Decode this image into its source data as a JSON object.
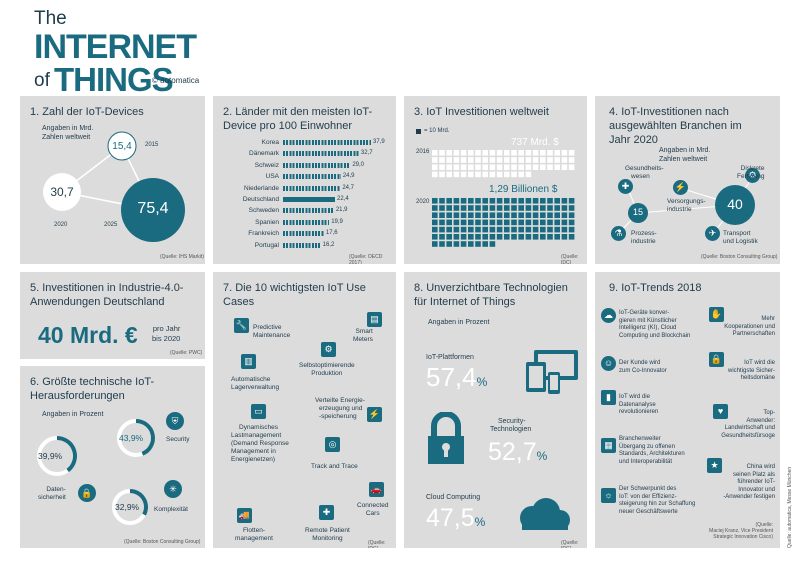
{
  "header": {
    "line1": "The",
    "line2": "INTERNET",
    "line3a": "of",
    "line3b": "THINGS",
    "copyright": "© automatica"
  },
  "p1": {
    "title": "1. Zahl der IoT-Devices",
    "subtitle": "Angaben in Mrd.",
    "subtitle2": "Zahlen weltweit",
    "v2015": "15,4",
    "l2015": "2015",
    "v2020": "30,7",
    "l2020": "2020",
    "v2025": "75,4",
    "l2025": "2025",
    "source": "(Quelle: IHS Markit)"
  },
  "p2": {
    "title": "2. Länder mit den meisten IoT-",
    "title2": "Device pro 100 Einwohner",
    "rows": [
      {
        "country": "Korea",
        "value": "37,9"
      },
      {
        "country": "Dänemark",
        "value": "32,7"
      },
      {
        "country": "Schweiz",
        "value": "29,0"
      },
      {
        "country": "USA",
        "value": "24,9"
      },
      {
        "country": "Niederlande",
        "value": "24,7"
      },
      {
        "country": "Deutschland",
        "value": "22,4"
      },
      {
        "country": "Schweden",
        "value": "21,9"
      },
      {
        "country": "Spanien",
        "value": "19,9"
      },
      {
        "country": "Frankreich",
        "value": "17,6"
      },
      {
        "country": "Portugal",
        "value": "16,2"
      }
    ],
    "source": "(Quelle: OECD 2017)"
  },
  "p3": {
    "title": "3. IoT Investitionen weltweit",
    "legend": "= 10 Mrd.",
    "y2016": "2016",
    "v2016": "737 Mrd. $",
    "y2020": "2020",
    "v2020": "1,29 Billionen $",
    "source": "(Quelle: IDC)"
  },
  "p4": {
    "title": "4. IoT-Investitionen nach",
    "title2": "ausgewählten Branchen im",
    "title3": "Jahr 2020",
    "subtitle": "Angaben in Mrd.",
    "subtitle2": "Zahlen weltweit",
    "g1a": "Gesundheits-",
    "g1b": "wesen",
    "g2a": "Diskrete",
    "g2b": "Fertigung",
    "g3a": "Versorgungs-",
    "g3b": "industrie",
    "g4a": "Prozess-",
    "g4b": "industrie",
    "g5a": "Transport",
    "g5b": "und Logistik",
    "v15": "15",
    "v40": "40",
    "source": "(Quelle: Boston Consulting Group)"
  },
  "p5": {
    "title": "5. Investitionen in Industrie-4.0-",
    "title2": "Anwendungen Deutschland",
    "big": "40 Mrd. €",
    "side1": "pro Jahr",
    "side2": "bis 2020",
    "source": "(Quelle: PWC)"
  },
  "p6": {
    "title": "6. Größte technische IoT-",
    "title2": "Herausforderungen",
    "subtitle": "Angaben in Prozent",
    "v1": "43,9",
    "l1": "Security",
    "v2": "39,9",
    "l2a": "Daten-",
    "l2b": "sicherheit",
    "v3": "32,9",
    "l3": "Komplexität",
    "pct": "%",
    "source": "(Quelle: Boston Consulting Group)"
  },
  "p7": {
    "title": "7. Die 10 wichtigsten IoT Use Cases",
    "c1a": "Predictive",
    "c1b": "Maintenance",
    "c2a": "Smart",
    "c2b": "Meters",
    "c3a": "Selbstoptimierende",
    "c3b": "Produktion",
    "c4a": "Automatische",
    "c4b": "Lagerverwaltung",
    "c5a": "Verteilte Energie-",
    "c5b": "erzeugung und",
    "c5c": "-speicherung",
    "c6a": "Dynamisches",
    "c6b": "Lastmanagement",
    "c6c": "(Demand Response",
    "c6d": "Management in",
    "c6e": "Energienetzen)",
    "c7": "Track and Trace",
    "c8a": "Connected",
    "c8b": "Cars",
    "c9a": "Flotten-",
    "c9b": "management",
    "c10a": "Remote Patient",
    "c10b": "Monitoring",
    "source": "(Quelle: IDG)"
  },
  "p8": {
    "title": "8. Unverzichtbare Technologien",
    "title2": "für Internet of Things",
    "subtitle": "Angaben in Prozent",
    "l1": "IoT-Plattformen",
    "v1": "57,4",
    "l2a": "Security-",
    "l2b": "Technologien",
    "v2": "52,7",
    "l3": "Cloud Computing",
    "v3": "47,5",
    "pct": "%",
    "source": "(Quelle: IDG)"
  },
  "p9": {
    "title": "9. IoT-Trends 2018",
    "t1a": "IoT-Geräte konver-",
    "t1b": "gieren mit Künstlicher",
    "t1c": "Intelligenz (KI), Cloud",
    "t1d": "Computing und Blockchain",
    "t2a": "Mehr",
    "t2b": "Kooperationen und",
    "t2c": "Partnerschaften",
    "t3a": "Der Kunde wird",
    "t3b": "zum Co-Innovator",
    "t4a": "IoT wird die",
    "t4b": "wichtigste Sicher-",
    "t4c": "heitsdomäne",
    "t5a": "IoT wird die",
    "t5b": "Datenanalyse",
    "t5c": "revolutionieren",
    "t6a": "Top-",
    "t6b": "Anwender:",
    "t6c": "Landwirtschaft und",
    "t6d": "Gesundheitsfürsoge",
    "t7a": "Branchenweiter",
    "t7b": "Übergang zu offenen",
    "t7c": "Standards, Architekturen",
    "t7d": "und Interoperabilität",
    "t8a": "China wird",
    "t8b": "seinen Platz als",
    "t8c": "führender IoT-",
    "t8d": "Innovator und",
    "t8e": "-Anwender festigen",
    "t9a": "Der Schwerpunkt des",
    "t9b": "IoT: von der Effizienz-",
    "t9c": "steigerung hin zur Schaffung",
    "t9d": "neuer Geschäftswerte",
    "source1": "(Quelle:",
    "source2": "Maciej Kranz, Vice President",
    "source3": "Strategic Innovation Cisco)"
  },
  "footer": {
    "credit": "Quelle: automatica, Messe München"
  },
  "colors": {
    "accent": "#1a6b80",
    "dark": "#1f3b4d",
    "panel": "#dcdcdc",
    "grid_light": "#ffffff"
  }
}
